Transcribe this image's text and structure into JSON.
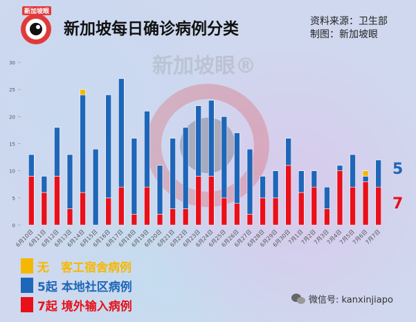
{
  "header": {
    "logo_text": "新加坡眼",
    "title": "新加坡每日确诊病例分类",
    "source_line1": "资料来源：卫生部",
    "source_line2": "制图：新加坡眼"
  },
  "watermark": "新加坡眼®",
  "legend": [
    {
      "key": "dorm",
      "text": "无　客工宿舍病例",
      "color": "#f5b800"
    },
    {
      "key": "community",
      "text": "5起 本地社区病例",
      "color": "#1f66b8"
    },
    {
      "key": "imported",
      "text": "7起 境外输入病例",
      "color": "#e8101a"
    }
  ],
  "end_labels": {
    "community": "5",
    "imported": "7"
  },
  "footer": {
    "text": "微信号: kanxinjiapo"
  },
  "chart_data": {
    "type": "bar",
    "stacked": true,
    "categories": [
      "6月10日",
      "6月11日",
      "6月12日",
      "6月13日",
      "6月14日",
      "6月15日",
      "6月16日",
      "6月17日",
      "6月18日",
      "6月19日",
      "6月20日",
      "6月21日",
      "6月22日",
      "6月23日",
      "6月24日",
      "6月25日",
      "6月26日",
      "6月27日",
      "6月28日",
      "6月29日",
      "6月30日",
      "7月1日",
      "7月2日",
      "7月3日",
      "7月4日",
      "7月5日",
      "7月6日",
      "7月7日"
    ],
    "series": [
      {
        "name": "境外输入病例",
        "color": "#e8101a",
        "values": [
          9,
          6,
          9,
          3,
          6,
          0,
          5,
          7,
          2,
          7,
          2,
          3,
          3,
          9,
          9,
          5,
          4,
          2,
          5,
          5,
          11,
          6,
          7,
          3,
          10,
          7,
          8,
          7
        ]
      },
      {
        "name": "本地社区病例",
        "color": "#1f66b8",
        "values": [
          4,
          3,
          9,
          10,
          18,
          14,
          19,
          20,
          14,
          14,
          9,
          13,
          15,
          13,
          14,
          15,
          13,
          12,
          4,
          5,
          5,
          4,
          3,
          4,
          1,
          6,
          1,
          5
        ]
      },
      {
        "name": "客工宿舍病例",
        "color": "#f5b800",
        "values": [
          0,
          0,
          0,
          0,
          1,
          0,
          0,
          0,
          0,
          0,
          0,
          0,
          0,
          0,
          0,
          0,
          0,
          0,
          0,
          0,
          0,
          0,
          0,
          0,
          0,
          0,
          1,
          0
        ]
      }
    ],
    "yticks": [
      0,
      5,
      10,
      15,
      20,
      25,
      30
    ],
    "ylim": [
      0,
      30
    ]
  },
  "colors": {
    "imported": "#e8101a",
    "community": "#1f66b8",
    "dorm": "#f5b800"
  }
}
